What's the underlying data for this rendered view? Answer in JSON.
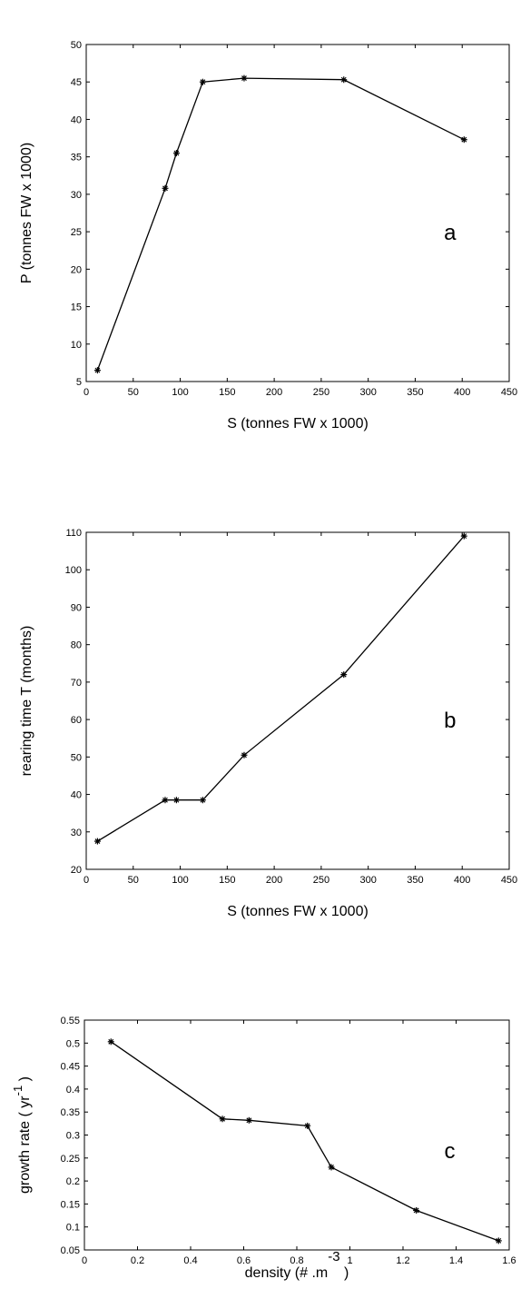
{
  "chart_data": [
    {
      "type": "line",
      "panel_label": "a",
      "xlabel": "S (tonnes FW x 1000)",
      "ylabel": "P (tonnes FW x 1000)",
      "xlim": [
        0,
        450
      ],
      "ylim": [
        5,
        50
      ],
      "xticks": [
        0,
        50,
        100,
        150,
        200,
        250,
        300,
        350,
        400,
        450
      ],
      "yticks": [
        5,
        10,
        15,
        20,
        25,
        30,
        35,
        40,
        45,
        50
      ],
      "grid": false,
      "marker": "star",
      "series": [
        {
          "x": [
            12,
            84,
            96,
            124,
            168,
            274,
            402
          ],
          "y": [
            6.5,
            30.8,
            35.5,
            45.0,
            45.5,
            45.3,
            37.3
          ]
        }
      ]
    },
    {
      "type": "line",
      "panel_label": "b",
      "xlabel": "S (tonnes FW x 1000)",
      "ylabel": "rearing  time T (months)",
      "xlim": [
        0,
        450
      ],
      "ylim": [
        20,
        110
      ],
      "xticks": [
        0,
        50,
        100,
        150,
        200,
        250,
        300,
        350,
        400,
        450
      ],
      "yticks": [
        20,
        30,
        40,
        50,
        60,
        70,
        80,
        90,
        100,
        110
      ],
      "grid": false,
      "marker": "star",
      "series": [
        {
          "x": [
            12,
            84,
            96,
            124,
            168,
            274,
            402
          ],
          "y": [
            27.5,
            38.5,
            38.5,
            38.5,
            50.5,
            72.0,
            109.0
          ]
        }
      ]
    },
    {
      "type": "line",
      "panel_label": "c",
      "xlabel": "density (# .m",
      "xlabel_superscript": "-3",
      "xlabel_suffix": " )",
      "ylabel": "growth rate ( yr",
      "ylabel_superscript": "-1",
      "ylabel_suffix": " )",
      "xlim": [
        0,
        1.6
      ],
      "ylim": [
        0.05,
        0.55
      ],
      "xticks": [
        0,
        0.2,
        0.4,
        0.6,
        0.8,
        1,
        1.2,
        1.4,
        1.6
      ],
      "yticks": [
        0.05,
        0.1,
        0.15,
        0.2,
        0.25,
        0.3,
        0.35,
        0.4,
        0.45,
        0.5,
        0.55
      ],
      "grid": false,
      "marker": "star",
      "series": [
        {
          "x": [
            0.1,
            0.52,
            0.62,
            0.84,
            0.93,
            1.25,
            1.56
          ],
          "y": [
            0.503,
            0.335,
            0.332,
            0.32,
            0.23,
            0.136,
            0.07
          ]
        }
      ]
    }
  ]
}
